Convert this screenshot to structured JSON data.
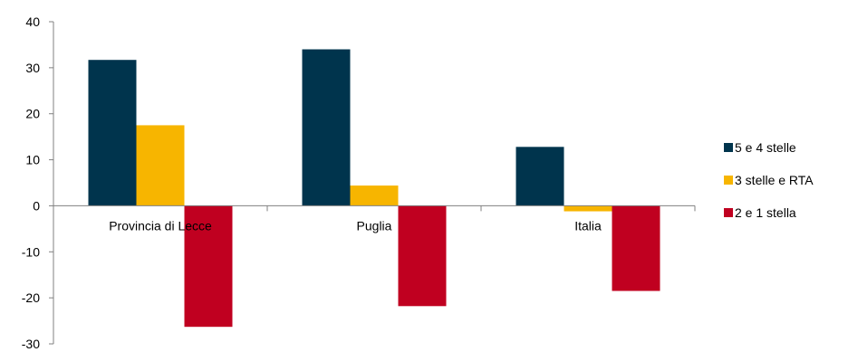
{
  "chart_data": {
    "type": "bar",
    "categories": [
      "Provincia di  Lecce",
      "Puglia",
      "Italia"
    ],
    "series": [
      {
        "name": "5 e 4 stelle",
        "color": "#00344d",
        "values": [
          31.7,
          34.0,
          12.8
        ]
      },
      {
        "name": "3 stelle e RTA",
        "color": "#f7b500",
        "values": [
          17.5,
          4.4,
          -1.2
        ]
      },
      {
        "name": "2 e 1 stella",
        "color": "#c00020",
        "values": [
          -26.3,
          -21.8,
          -18.5
        ]
      }
    ],
    "ylim": [
      -30,
      40
    ],
    "yticks": [
      "40",
      "30",
      "20",
      "10",
      "0",
      "-10",
      "-20",
      "-30"
    ],
    "ytick_values": [
      40,
      30,
      20,
      10,
      0,
      -10,
      -20,
      -30
    ],
    "legend_position": "right",
    "grid": false
  }
}
